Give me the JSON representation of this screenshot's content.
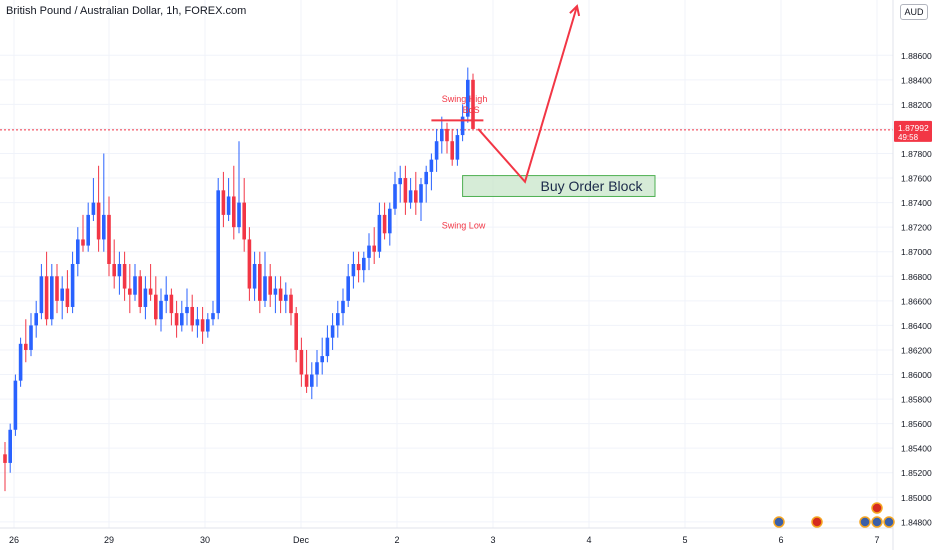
{
  "title": "British Pound / Australian Dollar, 1h, FOREX.com",
  "currency": "AUD",
  "price_tag": {
    "price": "1.87992",
    "countdown": "49:58"
  },
  "colors": {
    "up": "#2962ff",
    "down": "#f23645",
    "arrow": "#f23645",
    "zone_fill": "#c8e6c9",
    "zone_border": "#4caf50",
    "grid": "#f0f3fa",
    "axis_text": "#131722"
  },
  "chart_data": {
    "type": "candlestick",
    "y_axis": {
      "ylim": [
        1.8475,
        1.8905
      ],
      "ticks": [
        "1.88600",
        "1.88400",
        "1.88200",
        "1.88000",
        "1.87800",
        "1.87600",
        "1.87400",
        "1.87200",
        "1.87000",
        "1.86800",
        "1.86600",
        "1.86400",
        "1.86200",
        "1.86000",
        "1.85800",
        "1.85600",
        "1.85400",
        "1.85200",
        "1.85000",
        "1.84800"
      ]
    },
    "x_axis": {
      "ticks": [
        "26",
        "29",
        "30",
        "Dec",
        "2",
        "3",
        "4",
        "5",
        "6",
        "7"
      ]
    },
    "current_price": 1.87992,
    "candles": [
      [
        1.8535,
        1.8545,
        1.8505,
        1.8528
      ],
      [
        1.8528,
        1.856,
        1.852,
        1.8555
      ],
      [
        1.8555,
        1.86,
        1.855,
        1.8595
      ],
      [
        1.8595,
        1.863,
        1.859,
        1.8625
      ],
      [
        1.8625,
        1.8645,
        1.861,
        1.862
      ],
      [
        1.862,
        1.865,
        1.8615,
        1.864
      ],
      [
        1.864,
        1.866,
        1.863,
        1.865
      ],
      [
        1.865,
        1.869,
        1.8645,
        1.868
      ],
      [
        1.868,
        1.87,
        1.864,
        1.8645
      ],
      [
        1.8645,
        1.869,
        1.864,
        1.868
      ],
      [
        1.868,
        1.869,
        1.865,
        1.866
      ],
      [
        1.866,
        1.868,
        1.8645,
        1.867
      ],
      [
        1.867,
        1.8685,
        1.865,
        1.8655
      ],
      [
        1.8655,
        1.87,
        1.865,
        1.869
      ],
      [
        1.869,
        1.872,
        1.868,
        1.871
      ],
      [
        1.871,
        1.873,
        1.87,
        1.8705
      ],
      [
        1.8705,
        1.874,
        1.87,
        1.873
      ],
      [
        1.873,
        1.876,
        1.8725,
        1.874
      ],
      [
        1.874,
        1.877,
        1.87,
        1.871
      ],
      [
        1.871,
        1.878,
        1.87,
        1.873
      ],
      [
        1.873,
        1.8745,
        1.868,
        1.869
      ],
      [
        1.869,
        1.871,
        1.867,
        1.868
      ],
      [
        1.868,
        1.87,
        1.8665,
        1.869
      ],
      [
        1.869,
        1.87,
        1.866,
        1.867
      ],
      [
        1.867,
        1.869,
        1.865,
        1.8665
      ],
      [
        1.8665,
        1.869,
        1.866,
        1.868
      ],
      [
        1.868,
        1.8685,
        1.865,
        1.8655
      ],
      [
        1.8655,
        1.868,
        1.8645,
        1.867
      ],
      [
        1.867,
        1.869,
        1.866,
        1.8665
      ],
      [
        1.8665,
        1.868,
        1.864,
        1.8645
      ],
      [
        1.8645,
        1.867,
        1.8635,
        1.866
      ],
      [
        1.866,
        1.868,
        1.865,
        1.8665
      ],
      [
        1.8665,
        1.867,
        1.864,
        1.865
      ],
      [
        1.865,
        1.866,
        1.863,
        1.864
      ],
      [
        1.864,
        1.866,
        1.8635,
        1.865
      ],
      [
        1.865,
        1.867,
        1.864,
        1.8655
      ],
      [
        1.8655,
        1.8665,
        1.8635,
        1.864
      ],
      [
        1.864,
        1.8655,
        1.863,
        1.8645
      ],
      [
        1.8645,
        1.8655,
        1.8625,
        1.8635
      ],
      [
        1.8635,
        1.865,
        1.863,
        1.8645
      ],
      [
        1.8645,
        1.866,
        1.864,
        1.865
      ],
      [
        1.865,
        1.876,
        1.8645,
        1.875
      ],
      [
        1.875,
        1.8765,
        1.872,
        1.873
      ],
      [
        1.873,
        1.876,
        1.8725,
        1.8745
      ],
      [
        1.8745,
        1.877,
        1.871,
        1.872
      ],
      [
        1.872,
        1.879,
        1.8715,
        1.874
      ],
      [
        1.874,
        1.876,
        1.87,
        1.871
      ],
      [
        1.871,
        1.872,
        1.866,
        1.867
      ],
      [
        1.867,
        1.87,
        1.866,
        1.869
      ],
      [
        1.869,
        1.87,
        1.865,
        1.866
      ],
      [
        1.866,
        1.87,
        1.8655,
        1.868
      ],
      [
        1.868,
        1.869,
        1.8655,
        1.8665
      ],
      [
        1.8665,
        1.868,
        1.865,
        1.867
      ],
      [
        1.867,
        1.868,
        1.865,
        1.866
      ],
      [
        1.866,
        1.8675,
        1.865,
        1.8665
      ],
      [
        1.8665,
        1.867,
        1.864,
        1.865
      ],
      [
        1.865,
        1.8655,
        1.861,
        1.862
      ],
      [
        1.862,
        1.863,
        1.859,
        1.86
      ],
      [
        1.86,
        1.862,
        1.8585,
        1.859
      ],
      [
        1.859,
        1.861,
        1.858,
        1.86
      ],
      [
        1.86,
        1.862,
        1.859,
        1.861
      ],
      [
        1.861,
        1.863,
        1.86,
        1.8615
      ],
      [
        1.8615,
        1.864,
        1.861,
        1.863
      ],
      [
        1.863,
        1.865,
        1.862,
        1.864
      ],
      [
        1.864,
        1.866,
        1.863,
        1.865
      ],
      [
        1.865,
        1.867,
        1.864,
        1.866
      ],
      [
        1.866,
        1.869,
        1.8655,
        1.868
      ],
      [
        1.868,
        1.87,
        1.867,
        1.869
      ],
      [
        1.869,
        1.87,
        1.8675,
        1.8685
      ],
      [
        1.8685,
        1.87,
        1.8675,
        1.8695
      ],
      [
        1.8695,
        1.8715,
        1.8685,
        1.8705
      ],
      [
        1.8705,
        1.872,
        1.869,
        1.87
      ],
      [
        1.87,
        1.874,
        1.8695,
        1.873
      ],
      [
        1.873,
        1.874,
        1.871,
        1.8715
      ],
      [
        1.8715,
        1.874,
        1.8705,
        1.8735
      ],
      [
        1.8735,
        1.8765,
        1.873,
        1.8755
      ],
      [
        1.8755,
        1.877,
        1.874,
        1.876
      ],
      [
        1.876,
        1.877,
        1.873,
        1.874
      ],
      [
        1.874,
        1.876,
        1.8735,
        1.875
      ],
      [
        1.875,
        1.8765,
        1.873,
        1.874
      ],
      [
        1.874,
        1.876,
        1.8725,
        1.8755
      ],
      [
        1.8755,
        1.877,
        1.874,
        1.8765
      ],
      [
        1.8765,
        1.878,
        1.875,
        1.8775
      ],
      [
        1.8775,
        1.88,
        1.8765,
        1.879
      ],
      [
        1.879,
        1.881,
        1.878,
        1.88
      ],
      [
        1.88,
        1.8805,
        1.878,
        1.879
      ],
      [
        1.879,
        1.88,
        1.877,
        1.8775
      ],
      [
        1.8775,
        1.88,
        1.877,
        1.8795
      ],
      [
        1.8795,
        1.882,
        1.879,
        1.881
      ],
      [
        1.881,
        1.885,
        1.8805,
        1.884
      ],
      [
        1.884,
        1.8845,
        1.88,
        1.88
      ]
    ],
    "annotations": [
      {
        "type": "label",
        "text": "Swing High",
        "x": 84,
        "y": 1.8822
      },
      {
        "type": "label",
        "text": "BoS",
        "x": 88,
        "y": 1.8813
      },
      {
        "type": "label",
        "text": "Swing Low",
        "x": 84,
        "y": 1.8719
      },
      {
        "type": "hline",
        "from_x": 82,
        "to_x": 92,
        "y": 1.8807
      },
      {
        "type": "zone",
        "label": "Buy Order Block",
        "from_x": 88,
        "to_x": 125,
        "y_low": 1.8745,
        "y_high": 1.8762
      },
      {
        "type": "path",
        "points": [
          [
            91,
            1.88
          ],
          [
            100,
            1.8757
          ],
          [
            110,
            1.89
          ]
        ]
      }
    ]
  }
}
